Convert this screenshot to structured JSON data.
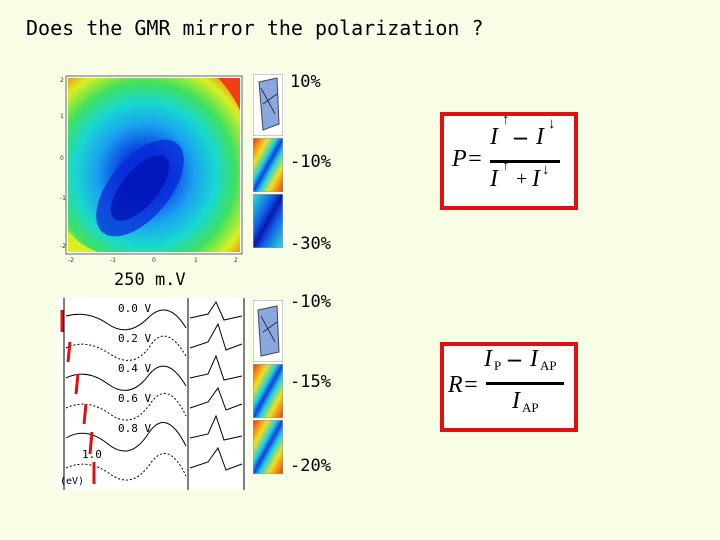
{
  "slide": {
    "title": "Does the GMR mirror the polarization ?"
  },
  "upper_panel": {
    "percent_labels": [
      "10%",
      "-10%",
      "-30%"
    ]
  },
  "lower_panel": {
    "voltage_label": "250 m.V",
    "percent_labels": [
      "-10%",
      "-15%",
      "-20%"
    ],
    "curve_labels": [
      "0.0",
      "0.2",
      "0.4",
      "0.6",
      "0.8",
      "1.0"
    ],
    "v_unit": "V",
    "axis_label": "(eV)"
  },
  "formula_p": {
    "lhs": "P=",
    "up": "I",
    "down": "I",
    "minus": "–",
    "plus": "+",
    "arrow_up": "↑",
    "arrow_down": "↓"
  },
  "formula_r": {
    "lhs": "R=",
    "num_p": "I",
    "sub_p": "P",
    "minus": "–",
    "num_ap": "I",
    "sub_ap": "AP",
    "den": "I",
    "den_sub": "AP"
  },
  "colors": {
    "background": "#f8fde5",
    "frame": "#e01010"
  }
}
